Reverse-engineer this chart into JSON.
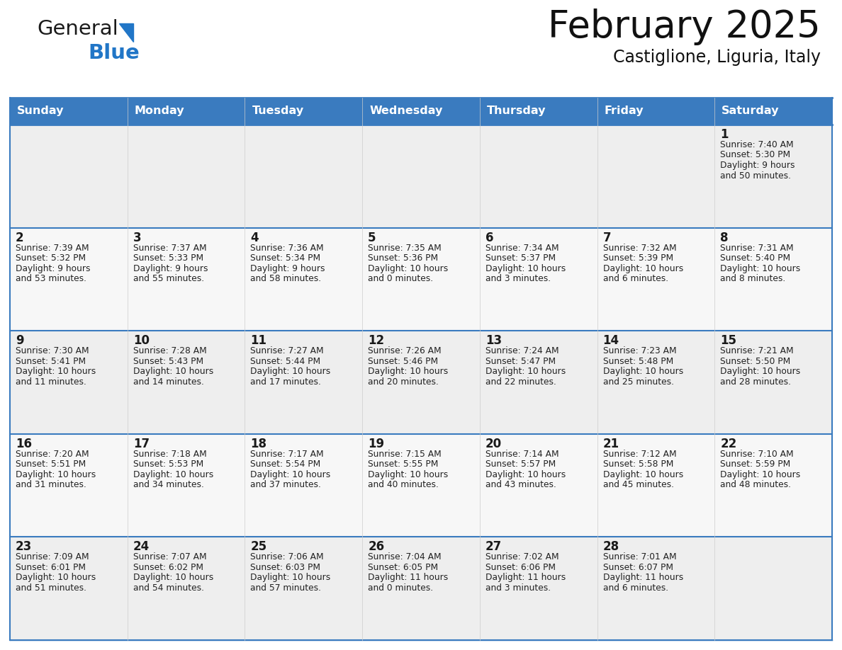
{
  "title": "February 2025",
  "subtitle": "Castiglione, Liguria, Italy",
  "header_bg": "#3a7bbf",
  "header_text": "#ffffff",
  "cell_bg_odd": "#eeeeee",
  "cell_bg_even": "#f7f7f7",
  "day_headers": [
    "Sunday",
    "Monday",
    "Tuesday",
    "Wednesday",
    "Thursday",
    "Friday",
    "Saturday"
  ],
  "logo_general_color": "#1a1a1a",
  "logo_blue_color": "#2176c7",
  "border_color": "#3a7bbf",
  "row_line_color": "#3a7bbf",
  "day_number_color": "#1a1a1a",
  "text_color": "#222222",
  "calendar": [
    [
      null,
      null,
      null,
      null,
      null,
      null,
      {
        "day": 1,
        "sunrise": "7:40 AM",
        "sunset": "5:30 PM",
        "daylight": "9 hours\nand 50 minutes."
      }
    ],
    [
      {
        "day": 2,
        "sunrise": "7:39 AM",
        "sunset": "5:32 PM",
        "daylight": "9 hours\nand 53 minutes."
      },
      {
        "day": 3,
        "sunrise": "7:37 AM",
        "sunset": "5:33 PM",
        "daylight": "9 hours\nand 55 minutes."
      },
      {
        "day": 4,
        "sunrise": "7:36 AM",
        "sunset": "5:34 PM",
        "daylight": "9 hours\nand 58 minutes."
      },
      {
        "day": 5,
        "sunrise": "7:35 AM",
        "sunset": "5:36 PM",
        "daylight": "10 hours\nand 0 minutes."
      },
      {
        "day": 6,
        "sunrise": "7:34 AM",
        "sunset": "5:37 PM",
        "daylight": "10 hours\nand 3 minutes."
      },
      {
        "day": 7,
        "sunrise": "7:32 AM",
        "sunset": "5:39 PM",
        "daylight": "10 hours\nand 6 minutes."
      },
      {
        "day": 8,
        "sunrise": "7:31 AM",
        "sunset": "5:40 PM",
        "daylight": "10 hours\nand 8 minutes."
      }
    ],
    [
      {
        "day": 9,
        "sunrise": "7:30 AM",
        "sunset": "5:41 PM",
        "daylight": "10 hours\nand 11 minutes."
      },
      {
        "day": 10,
        "sunrise": "7:28 AM",
        "sunset": "5:43 PM",
        "daylight": "10 hours\nand 14 minutes."
      },
      {
        "day": 11,
        "sunrise": "7:27 AM",
        "sunset": "5:44 PM",
        "daylight": "10 hours\nand 17 minutes."
      },
      {
        "day": 12,
        "sunrise": "7:26 AM",
        "sunset": "5:46 PM",
        "daylight": "10 hours\nand 20 minutes."
      },
      {
        "day": 13,
        "sunrise": "7:24 AM",
        "sunset": "5:47 PM",
        "daylight": "10 hours\nand 22 minutes."
      },
      {
        "day": 14,
        "sunrise": "7:23 AM",
        "sunset": "5:48 PM",
        "daylight": "10 hours\nand 25 minutes."
      },
      {
        "day": 15,
        "sunrise": "7:21 AM",
        "sunset": "5:50 PM",
        "daylight": "10 hours\nand 28 minutes."
      }
    ],
    [
      {
        "day": 16,
        "sunrise": "7:20 AM",
        "sunset": "5:51 PM",
        "daylight": "10 hours\nand 31 minutes."
      },
      {
        "day": 17,
        "sunrise": "7:18 AM",
        "sunset": "5:53 PM",
        "daylight": "10 hours\nand 34 minutes."
      },
      {
        "day": 18,
        "sunrise": "7:17 AM",
        "sunset": "5:54 PM",
        "daylight": "10 hours\nand 37 minutes."
      },
      {
        "day": 19,
        "sunrise": "7:15 AM",
        "sunset": "5:55 PM",
        "daylight": "10 hours\nand 40 minutes."
      },
      {
        "day": 20,
        "sunrise": "7:14 AM",
        "sunset": "5:57 PM",
        "daylight": "10 hours\nand 43 minutes."
      },
      {
        "day": 21,
        "sunrise": "7:12 AM",
        "sunset": "5:58 PM",
        "daylight": "10 hours\nand 45 minutes."
      },
      {
        "day": 22,
        "sunrise": "7:10 AM",
        "sunset": "5:59 PM",
        "daylight": "10 hours\nand 48 minutes."
      }
    ],
    [
      {
        "day": 23,
        "sunrise": "7:09 AM",
        "sunset": "6:01 PM",
        "daylight": "10 hours\nand 51 minutes."
      },
      {
        "day": 24,
        "sunrise": "7:07 AM",
        "sunset": "6:02 PM",
        "daylight": "10 hours\nand 54 minutes."
      },
      {
        "day": 25,
        "sunrise": "7:06 AM",
        "sunset": "6:03 PM",
        "daylight": "10 hours\nand 57 minutes."
      },
      {
        "day": 26,
        "sunrise": "7:04 AM",
        "sunset": "6:05 PM",
        "daylight": "11 hours\nand 0 minutes."
      },
      {
        "day": 27,
        "sunrise": "7:02 AM",
        "sunset": "6:06 PM",
        "daylight": "11 hours\nand 3 minutes."
      },
      {
        "day": 28,
        "sunrise": "7:01 AM",
        "sunset": "6:07 PM",
        "daylight": "11 hours\nand 6 minutes."
      },
      null
    ]
  ],
  "fig_width": 11.88,
  "fig_height": 9.18,
  "dpi": 100
}
